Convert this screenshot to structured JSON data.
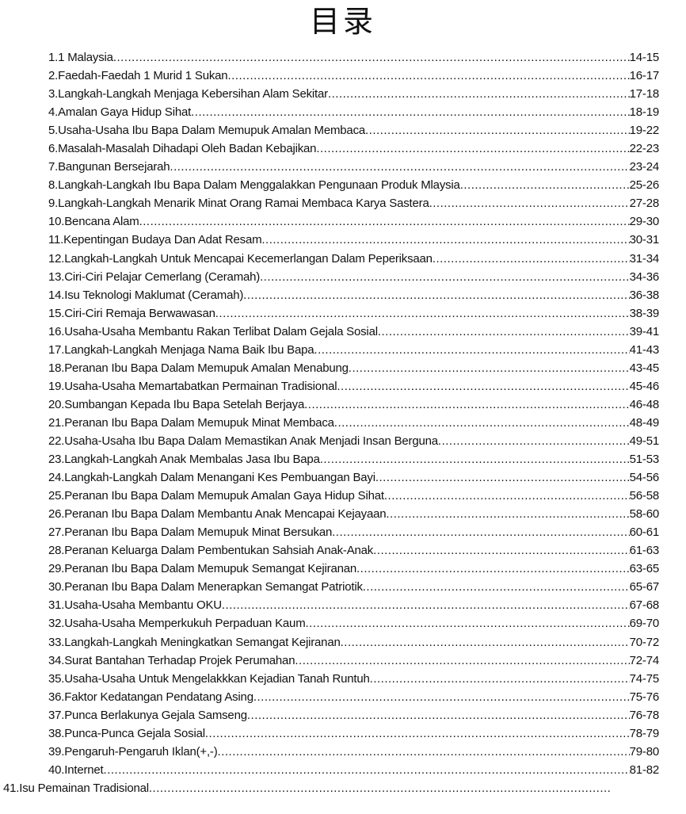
{
  "title": "目录",
  "entries": [
    {
      "label": "1.1 Malaysia",
      "pages": "14-15"
    },
    {
      "label": "2.Faedah-Faedah 1 Murid 1 Sukan",
      "pages": "16-17"
    },
    {
      "label": "3.Langkah-Langkah Menjaga Kebersihan Alam Sekitar",
      "pages": "17-18"
    },
    {
      "label": "4.Amalan Gaya Hidup Sihat",
      "pages": "18-19"
    },
    {
      "label": "5.Usaha-Usaha Ibu Bapa Dalam Memupuk Amalan Membaca",
      "pages": "19-22"
    },
    {
      "label": "6.Masalah-Masalah Dihadapi Oleh Badan Kebajikan",
      "pages": "22-23"
    },
    {
      "label": "7.Bangunan Bersejarah",
      "pages": "23-24"
    },
    {
      "label": "8.Langkah-Langkah Ibu Bapa Dalam Menggalakkan Pengunaan Produk Mlaysia",
      "pages": "25-26"
    },
    {
      "label": "9.Langkah-Langkah Menarik Minat Orang Ramai Membaca Karya Sastera",
      "pages": "27-28"
    },
    {
      "label": "10.Bencana Alam",
      "pages": "29-30"
    },
    {
      "label": "11.Kepentingan Budaya Dan Adat Resam",
      "pages": "30-31"
    },
    {
      "label": "12.Langkah-Langkah Untuk Mencapai Kecemerlangan Dalam Peperiksaan",
      "pages": "31-34"
    },
    {
      "label": "13.Ciri-Ciri Pelajar Cemerlang (Ceramah)",
      "pages": "34-36"
    },
    {
      "label": "14.Isu Teknologi Maklumat (Ceramah)",
      "pages": "36-38"
    },
    {
      "label": "15.Ciri-Ciri Remaja Berwawasan",
      "pages": "38-39"
    },
    {
      "label": "16.Usaha-Usaha Membantu Rakan Terlibat Dalam Gejala Sosial",
      "pages": "39-41"
    },
    {
      "label": "17.Langkah-Langkah Menjaga Nama Baik Ibu Bapa",
      "pages": "41-43"
    },
    {
      "label": "18.Peranan Ibu Bapa Dalam Memupuk Amalan Menabung",
      "pages": "43-45"
    },
    {
      "label": "19.Usaha-Usaha Memartabatkan Permainan Tradisional",
      "pages": "45-46"
    },
    {
      "label": "20.Sumbangan Kepada Ibu Bapa Setelah Berjaya",
      "pages": "46-48"
    },
    {
      "label": "21.Peranan Ibu Bapa Dalam Memupuk Minat Membaca",
      "pages": "48-49"
    },
    {
      "label": "22.Usaha-Usaha Ibu Bapa Dalam Memastikan Anak Menjadi Insan Berguna",
      "pages": "49-51"
    },
    {
      "label": "23.Langkah-Langkah Anak Membalas Jasa Ibu Bapa",
      "pages": "51-53"
    },
    {
      "label": "24.Langkah-Langkah Dalam Menangani Kes Pembuangan Bayi",
      "pages": "54-56"
    },
    {
      "label": "25.Peranan Ibu Bapa Dalam Memupuk Amalan Gaya Hidup Sihat",
      "pages": "56-58"
    },
    {
      "label": "26.Peranan Ibu Bapa Dalam Membantu Anak Mencapai Kejayaan",
      "pages": "58-60"
    },
    {
      "label": "27.Peranan Ibu Bapa Dalam Memupuk Minat Bersukan",
      "pages": "60-61"
    },
    {
      "label": "28.Peranan Keluarga Dalam Pembentukan Sahsiah Anak-Anak",
      "pages": "61-63"
    },
    {
      "label": "29.Peranan Ibu Bapa Dalam Memupuk Semangat Kejiranan",
      "pages": "63-65"
    },
    {
      "label": "30.Peranan Ibu Bapa Dalam Menerapkan Semangat Patriotik",
      "pages": "65-67"
    },
    {
      "label": "31.Usaha-Usaha Membantu OKU",
      "pages": "67-68"
    },
    {
      "label": "32.Usaha-Usaha Memperkukuh Perpaduan Kaum",
      "pages": "69-70"
    },
    {
      "label": "33.Langkah-Langkah Meningkatkan Semangat Kejiranan",
      "pages": "70-72"
    },
    {
      "label": "34.Surat Bantahan Terhadap Projek Perumahan",
      "pages": "72-74"
    },
    {
      "label": "35.Usaha-Usaha Untuk Mengelakkkan Kejadian Tanah Runtuh",
      "pages": "74-75"
    },
    {
      "label": "36.Faktor Kedatangan Pendatang Asing",
      "pages": "75-76"
    },
    {
      "label": "37.Punca Berlakunya Gejala Samseng",
      "pages": "76-78"
    },
    {
      "label": "38.Punca-Punca Gejala Sosial",
      "pages": "78-79"
    },
    {
      "label": "39.Pengaruh-Pengaruh Iklan(+,-)",
      "pages": "79-80"
    },
    {
      "label": "40.Internet",
      "pages": "81-82"
    }
  ],
  "last_entry": {
    "label": "41.Isu Pemainan Tradisional"
  }
}
